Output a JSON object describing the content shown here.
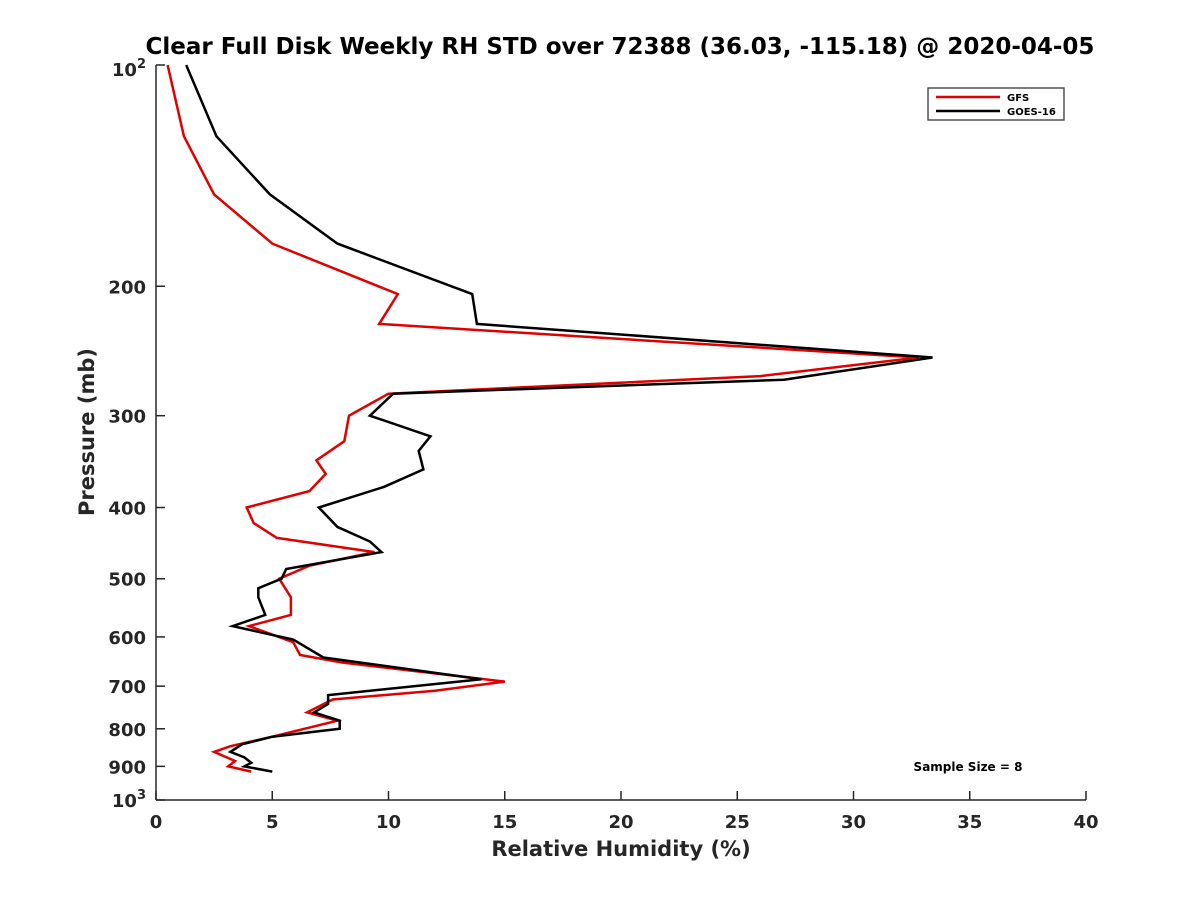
{
  "chart_data": {
    "type": "line",
    "title": "Clear Full Disk Weekly RH STD over 72388 (36.03, -115.18) @ 2020-04-05",
    "xlabel": "Relative Humidity (%)",
    "ylabel": "Pressure (mb)",
    "xlim": [
      0,
      40
    ],
    "ylim": [
      100,
      1000
    ],
    "yscale": "log",
    "y_reversed": true,
    "grid": false,
    "legend_placement": "top-right",
    "x_ticks": [
      "0",
      "5",
      "10",
      "15",
      "20",
      "25",
      "30",
      "35",
      "40"
    ],
    "y_ticks": [
      {
        "value": 100,
        "base": "10",
        "exp": "2"
      },
      {
        "value": 200,
        "label": "200"
      },
      {
        "value": 300,
        "label": "300"
      },
      {
        "value": 400,
        "label": "400"
      },
      {
        "value": 500,
        "label": "500"
      },
      {
        "value": 600,
        "label": "600"
      },
      {
        "value": 700,
        "label": "700"
      },
      {
        "value": 800,
        "label": "800"
      },
      {
        "value": 900,
        "label": "900"
      },
      {
        "value": 1000,
        "base": "10",
        "exp": "3"
      }
    ],
    "annotation": "Sample Size = 8",
    "series": [
      {
        "name": "GFS",
        "color": "#e00000",
        "points": [
          [
            0.5,
            100
          ],
          [
            1.2,
            125
          ],
          [
            2.5,
            150
          ],
          [
            5.0,
            175
          ],
          [
            10.4,
            205
          ],
          [
            9.6,
            225
          ],
          [
            32.8,
            250
          ],
          [
            26.0,
            265
          ],
          [
            10.0,
            280
          ],
          [
            8.3,
            300
          ],
          [
            8.1,
            325
          ],
          [
            6.9,
            345
          ],
          [
            7.3,
            360
          ],
          [
            6.6,
            380
          ],
          [
            3.9,
            400
          ],
          [
            4.2,
            420
          ],
          [
            5.2,
            440
          ],
          [
            9.4,
            460
          ],
          [
            6.6,
            480
          ],
          [
            5.3,
            500
          ],
          [
            5.8,
            530
          ],
          [
            5.8,
            560
          ],
          [
            4.0,
            580
          ],
          [
            5.9,
            610
          ],
          [
            6.2,
            635
          ],
          [
            8.0,
            650
          ],
          [
            15.0,
            690
          ],
          [
            12.0,
            710
          ],
          [
            7.6,
            730
          ],
          [
            6.5,
            760
          ],
          [
            7.8,
            780
          ],
          [
            5.0,
            820
          ],
          [
            3.2,
            845
          ],
          [
            2.5,
            860
          ],
          [
            3.4,
            885
          ],
          [
            3.1,
            900
          ],
          [
            4.1,
            915
          ]
        ]
      },
      {
        "name": "GOES-16",
        "color": "#000000",
        "points": [
          [
            1.3,
            100
          ],
          [
            2.6,
            125
          ],
          [
            4.9,
            150
          ],
          [
            7.8,
            175
          ],
          [
            13.6,
            205
          ],
          [
            13.8,
            225
          ],
          [
            33.4,
            250
          ],
          [
            27.0,
            268
          ],
          [
            10.2,
            280
          ],
          [
            9.2,
            300
          ],
          [
            11.8,
            320
          ],
          [
            11.3,
            335
          ],
          [
            11.5,
            355
          ],
          [
            9.8,
            375
          ],
          [
            7.0,
            400
          ],
          [
            7.8,
            425
          ],
          [
            9.2,
            445
          ],
          [
            9.7,
            460
          ],
          [
            5.6,
            485
          ],
          [
            5.4,
            500
          ],
          [
            4.4,
            515
          ],
          [
            4.4,
            530
          ],
          [
            4.7,
            560
          ],
          [
            3.3,
            580
          ],
          [
            5.9,
            605
          ],
          [
            7.2,
            640
          ],
          [
            14.0,
            685
          ],
          [
            7.4,
            720
          ],
          [
            7.4,
            740
          ],
          [
            6.8,
            760
          ],
          [
            7.9,
            780
          ],
          [
            7.9,
            800
          ],
          [
            5.0,
            820
          ],
          [
            3.7,
            840
          ],
          [
            3.2,
            860
          ],
          [
            3.8,
            875
          ],
          [
            4.1,
            890
          ],
          [
            3.8,
            900
          ],
          [
            5.0,
            915
          ]
        ]
      }
    ]
  }
}
